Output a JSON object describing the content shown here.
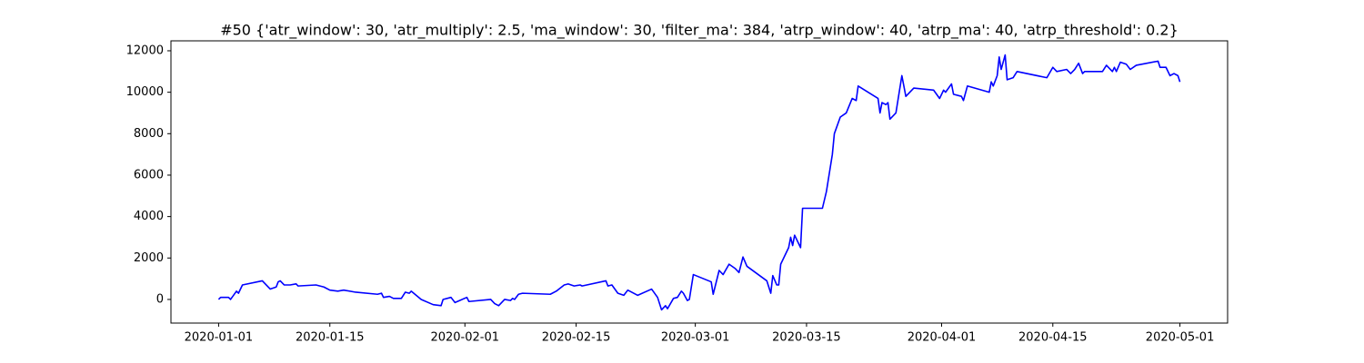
{
  "chart_data": {
    "type": "line",
    "title": "#50 {'atr_window': 30, 'atr_multiply': 2.5, 'ma_window': 30, 'filter_ma': 384, 'atrp_window': 40, 'atrp_ma': 40, 'atrp_threshold': 0.2}",
    "color": "#0000ff",
    "x": [
      "2020-01-01 00:00",
      "2020-01-01 06:00",
      "2020-01-02 06:00",
      "2020-01-02 12:00",
      "2020-01-03 06:00",
      "2020-01-03 12:00",
      "2020-01-04 00:00",
      "2020-01-06 12:00",
      "2020-01-07 12:00",
      "2020-01-08 06:00",
      "2020-01-08 12:00",
      "2020-01-08 18:00",
      "2020-01-09 06:00",
      "2020-01-10 00:00",
      "2020-01-10 18:00",
      "2020-01-11 00:00",
      "2020-01-13 06:00",
      "2020-01-14 06:00",
      "2020-01-15 00:00",
      "2020-01-16 00:00",
      "2020-01-16 18:00",
      "2020-01-18 06:00",
      "2020-01-21 00:00",
      "2020-01-21 12:00",
      "2020-01-21 18:00",
      "2020-01-22 12:00",
      "2020-01-23 00:00",
      "2020-01-24 00:00",
      "2020-01-24 12:00",
      "2020-01-25 00:00",
      "2020-01-25 06:00",
      "2020-01-26 12:00",
      "2020-01-28 00:00",
      "2020-01-29 00:00",
      "2020-01-29 06:00",
      "2020-01-30 06:00",
      "2020-01-30 18:00",
      "2020-02-01 06:00",
      "2020-02-01 12:00",
      "2020-02-04 06:00",
      "2020-02-04 18:00",
      "2020-02-05 06:00",
      "2020-02-06 00:00",
      "2020-02-06 18:00",
      "2020-02-07 00:00",
      "2020-02-07 06:00",
      "2020-02-07 18:00",
      "2020-02-08 06:00",
      "2020-02-11 18:00",
      "2020-02-12 12:00",
      "2020-02-13 12:00",
      "2020-02-14 00:00",
      "2020-02-14 18:00",
      "2020-02-15 12:00",
      "2020-02-15 18:00",
      "2020-02-18 18:00",
      "2020-02-19 00:00",
      "2020-02-19 12:00",
      "2020-02-20 06:00",
      "2020-02-21 00:00",
      "2020-02-21 12:00",
      "2020-02-22 18:00",
      "2020-02-24 12:00",
      "2020-02-25 06:00",
      "2020-02-25 18:00",
      "2020-02-26 06:00",
      "2020-02-26 12:00",
      "2020-02-27 06:00",
      "2020-02-27 18:00",
      "2020-02-28 06:00",
      "2020-02-28 12:00",
      "2020-02-29 00:00",
      "2020-02-29 06:00",
      "2020-02-29 18:00",
      "2020-03-03 00:00",
      "2020-03-03 06:00",
      "2020-03-04 00:00",
      "2020-03-04 12:00",
      "2020-03-05 06:00",
      "2020-03-06 00:00",
      "2020-03-06 12:00",
      "2020-03-07 00:00",
      "2020-03-07 12:00",
      "2020-03-10 00:00",
      "2020-03-10 12:00",
      "2020-03-10 18:00",
      "2020-03-11 06:00",
      "2020-03-11 12:00",
      "2020-03-11 18:00",
      "2020-03-12 18:00",
      "2020-03-13 00:00",
      "2020-03-13 06:00",
      "2020-03-13 12:00",
      "2020-03-14 06:00",
      "2020-03-14 12:00",
      "2020-03-17 00:00",
      "2020-03-17 12:00",
      "2020-03-18 06:00",
      "2020-03-18 12:00",
      "2020-03-19 06:00",
      "2020-03-20 00:00",
      "2020-03-20 18:00",
      "2020-03-21 06:00",
      "2020-03-21 12:00",
      "2020-03-24 00:00",
      "2020-03-24 06:00",
      "2020-03-24 12:00",
      "2020-03-25 00:00",
      "2020-03-25 06:00",
      "2020-03-25 12:00",
      "2020-03-26 06:00",
      "2020-03-26 18:00",
      "2020-03-27 00:00",
      "2020-03-27 12:00",
      "2020-03-28 12:00",
      "2020-03-31 00:00",
      "2020-03-31 18:00",
      "2020-04-01 06:00",
      "2020-04-01 12:00",
      "2020-04-02 06:00",
      "2020-04-02 12:00",
      "2020-04-03 12:00",
      "2020-04-03 18:00",
      "2020-04-04 06:00",
      "2020-04-07 00:00",
      "2020-04-07 06:00",
      "2020-04-07 12:00",
      "2020-04-08 00:00",
      "2020-04-08 06:00",
      "2020-04-08 12:00",
      "2020-04-09 00:00",
      "2020-04-09 06:00",
      "2020-04-10 00:00",
      "2020-04-10 12:00",
      "2020-04-14 06:00",
      "2020-04-15 00:00",
      "2020-04-15 12:00",
      "2020-04-16 18:00",
      "2020-04-17 06:00",
      "2020-04-17 18:00",
      "2020-04-18 06:00",
      "2020-04-18 18:00",
      "2020-04-19 00:00",
      "2020-04-21 06:00",
      "2020-04-21 18:00",
      "2020-04-22 12:00",
      "2020-04-22 18:00",
      "2020-04-23 00:00",
      "2020-04-23 12:00",
      "2020-04-24 06:00",
      "2020-04-24 18:00",
      "2020-04-25 12:00",
      "2020-04-28 06:00",
      "2020-04-28 12:00",
      "2020-04-29 06:00",
      "2020-04-29 18:00",
      "2020-04-30 06:00",
      "2020-04-30 18:00",
      "2020-05-01 00:00"
    ],
    "values": [
      0,
      100,
      100,
      0,
      400,
      300,
      700,
      900,
      500,
      600,
      850,
      900,
      700,
      700,
      750,
      650,
      700,
      600,
      450,
      400,
      450,
      350,
      250,
      300,
      100,
      150,
      50,
      50,
      350,
      300,
      400,
      0,
      -250,
      -300,
      0,
      100,
      -150,
      100,
      -100,
      0,
      -200,
      -300,
      0,
      -50,
      50,
      0,
      250,
      300,
      250,
      400,
      700,
      750,
      650,
      700,
      650,
      900,
      650,
      700,
      300,
      200,
      450,
      200,
      500,
      100,
      -500,
      -300,
      -450,
      50,
      100,
      400,
      300,
      -50,
      0,
      1200,
      850,
      250,
      1400,
      1200,
      1700,
      1500,
      1300,
      2050,
      1600,
      900,
      300,
      1150,
      700,
      700,
      1700,
      2500,
      3000,
      2600,
      3100,
      2500,
      4400,
      4400,
      5200,
      7000,
      8000,
      8800,
      9000,
      9700,
      9600,
      10300,
      9700,
      9000,
      9500,
      9400,
      9500,
      8700,
      9000,
      10200,
      10800,
      9800,
      10200,
      10100,
      9700,
      10100,
      10000,
      10400,
      9900,
      9800,
      9600,
      10300,
      10000,
      10500,
      10300,
      10800,
      11700,
      11100,
      11800,
      10600,
      10700,
      11000,
      10700,
      11200,
      11000,
      11100,
      10900,
      11100,
      11400,
      10900,
      11000,
      11000,
      11300,
      11000,
      11200,
      11000,
      11450,
      11350,
      11100,
      11300,
      11500,
      11200,
      11200,
      10800,
      10900,
      10800,
      10500
    ],
    "xlim": [
      "2019-12-26 00:00",
      "2020-05-07 00:00"
    ],
    "xticks": [
      {
        "value": "2020-01-01 00:00",
        "label": "2020-01-01"
      },
      {
        "value": "2020-01-15 00:00",
        "label": "2020-01-15"
      },
      {
        "value": "2020-02-01 00:00",
        "label": "2020-02-01"
      },
      {
        "value": "2020-02-15 00:00",
        "label": "2020-02-15"
      },
      {
        "value": "2020-03-01 00:00",
        "label": "2020-03-01"
      },
      {
        "value": "2020-03-15 00:00",
        "label": "2020-03-15"
      },
      {
        "value": "2020-04-01 00:00",
        "label": "2020-04-01"
      },
      {
        "value": "2020-04-15 00:00",
        "label": "2020-04-15"
      },
      {
        "value": "2020-05-01 00:00",
        "label": "2020-05-01"
      }
    ],
    "ylim": [
      -1140,
      12480
    ],
    "yticks": [
      0,
      2000,
      4000,
      6000,
      8000,
      10000,
      12000
    ],
    "grid": false
  }
}
